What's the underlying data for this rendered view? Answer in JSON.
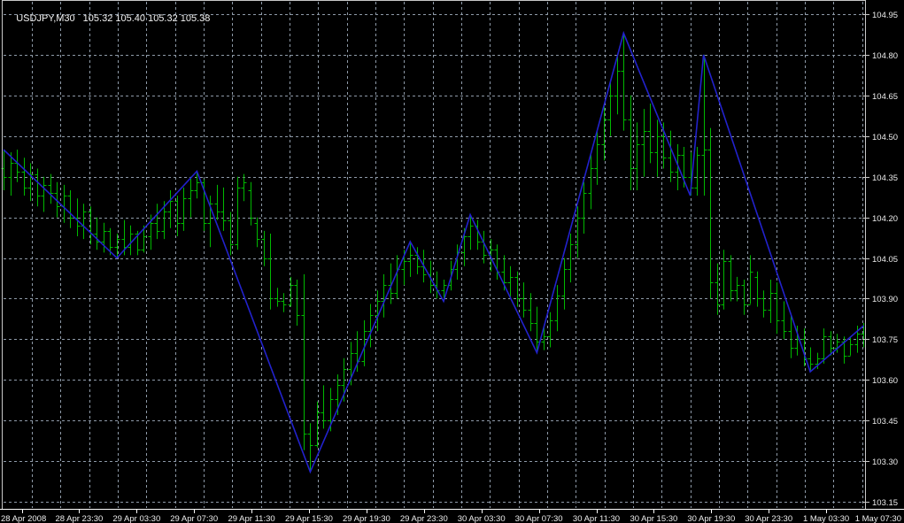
{
  "header": {
    "symbol_period": "USDJPY,M30",
    "ohlc_quote": "105.32 105.40 105.32 105.38"
  },
  "colors": {
    "background": "#000000",
    "grid": "#8e9aa8",
    "bar": "#00b800",
    "zigzag": "#2222cc",
    "frame": "#c8c8c8",
    "axis_text": "#ececec"
  },
  "price_axis": {
    "labels": [
      "104.95",
      "104.80",
      "104.65",
      "104.50",
      "104.35",
      "104.20",
      "104.05",
      "103.90",
      "103.75",
      "103.60",
      "103.45",
      "103.30",
      "103.15"
    ]
  },
  "time_axis": {
    "labels": [
      "28 Apr 2008",
      "28 Apr 23:30",
      "29 Apr 03:30",
      "29 Apr 07:30",
      "29 Apr 11:30",
      "29 Apr 15:30",
      "29 Apr 19:30",
      "29 Apr 23:30",
      "30 Apr 03:30",
      "30 Apr 07:30",
      "30 Apr 11:30",
      "30 Apr 15:30",
      "30 Apr 19:30",
      "30 Apr 23:30",
      "1 May 03:30",
      "1 May 07:30"
    ]
  },
  "chart_data": {
    "type": "ohlc-bar",
    "symbol": "USDJPY",
    "period": "M30",
    "title": "USDJPY,M30 105.32 105.40 105.32 105.38",
    "ylim": [
      103.15,
      104.95
    ],
    "grid": true,
    "indicator": "ZigZag",
    "bars": [
      [
        104.38,
        104.45,
        104.3,
        104.35
      ],
      [
        104.35,
        104.44,
        104.28,
        104.4
      ],
      [
        104.4,
        104.45,
        104.33,
        104.37
      ],
      [
        104.37,
        104.42,
        104.28,
        104.31
      ],
      [
        104.31,
        104.4,
        104.26,
        104.36
      ],
      [
        104.36,
        104.38,
        104.24,
        104.28
      ],
      [
        104.28,
        104.35,
        104.22,
        104.32
      ],
      [
        104.32,
        104.36,
        104.25,
        104.29
      ],
      [
        104.29,
        104.33,
        104.2,
        104.24
      ],
      [
        104.24,
        104.32,
        104.18,
        104.28
      ],
      [
        104.28,
        104.3,
        104.16,
        104.2
      ],
      [
        104.2,
        104.27,
        104.13,
        104.17
      ],
      [
        104.17,
        104.25,
        104.12,
        104.22
      ],
      [
        104.22,
        104.24,
        104.1,
        104.14
      ],
      [
        104.14,
        104.2,
        104.08,
        104.11
      ],
      [
        104.11,
        104.18,
        104.07,
        104.15
      ],
      [
        104.15,
        104.16,
        104.06,
        104.09
      ],
      [
        104.09,
        104.14,
        104.05,
        104.12
      ],
      [
        104.12,
        104.19,
        104.06,
        104.09
      ],
      [
        104.09,
        104.17,
        104.06,
        104.14
      ],
      [
        104.14,
        104.15,
        104.06,
        104.08
      ],
      [
        104.08,
        104.17,
        104.07,
        104.13
      ],
      [
        104.13,
        104.21,
        104.08,
        104.18
      ],
      [
        104.18,
        104.25,
        104.12,
        104.15
      ],
      [
        104.15,
        104.26,
        104.12,
        104.22
      ],
      [
        104.22,
        104.3,
        104.16,
        104.26
      ],
      [
        104.26,
        104.28,
        104.13,
        104.18
      ],
      [
        104.18,
        104.31,
        104.15,
        104.27
      ],
      [
        104.27,
        104.35,
        104.2,
        104.3
      ],
      [
        104.3,
        104.37,
        104.27,
        104.33
      ],
      [
        104.33,
        104.34,
        104.15,
        104.18
      ],
      [
        104.18,
        104.28,
        104.09,
        104.25
      ],
      [
        104.25,
        104.32,
        104.19,
        104.22
      ],
      [
        104.22,
        104.31,
        104.15,
        104.19
      ],
      [
        104.19,
        104.22,
        104.06,
        104.1
      ],
      [
        104.1,
        104.35,
        104.08,
        104.31
      ],
      [
        104.31,
        104.36,
        104.26,
        104.33
      ],
      [
        104.3,
        104.33,
        104.17,
        104.2
      ],
      [
        104.18,
        104.2,
        104.09,
        104.12
      ],
      [
        104.12,
        104.15,
        104.02,
        104.05
      ],
      [
        104.05,
        104.14,
        103.86,
        103.9
      ],
      [
        103.9,
        103.94,
        103.87,
        103.89
      ],
      [
        103.89,
        103.92,
        103.85,
        103.88
      ],
      [
        103.88,
        103.98,
        103.87,
        103.95
      ],
      [
        103.95,
        103.97,
        103.8,
        103.84
      ],
      [
        103.84,
        103.99,
        103.34,
        103.4
      ],
      [
        103.4,
        103.44,
        103.26,
        103.36
      ],
      [
        103.36,
        103.52,
        103.35,
        103.48
      ],
      [
        103.48,
        103.58,
        103.42,
        103.45
      ],
      [
        103.45,
        103.57,
        103.41,
        103.53
      ],
      [
        103.53,
        103.62,
        103.47,
        103.58
      ],
      [
        103.58,
        103.68,
        103.52,
        103.64
      ],
      [
        103.64,
        103.74,
        103.58,
        103.7
      ],
      [
        103.7,
        103.78,
        103.63,
        103.67
      ],
      [
        103.67,
        103.82,
        103.65,
        103.78
      ],
      [
        103.78,
        103.88,
        103.72,
        103.84
      ],
      [
        103.84,
        103.93,
        103.78,
        103.89
      ],
      [
        103.89,
        103.99,
        103.83,
        103.95
      ],
      [
        103.95,
        104.03,
        103.88,
        103.92
      ],
      [
        103.92,
        104.06,
        103.9,
        104.01
      ],
      [
        104.01,
        104.08,
        103.95,
        104.04
      ],
      [
        104.04,
        104.11,
        103.98,
        104.06
      ],
      [
        104.06,
        104.09,
        103.99,
        104.02
      ],
      [
        104.02,
        104.08,
        103.96,
        103.99
      ],
      [
        103.99,
        104.04,
        103.92,
        103.95
      ],
      [
        103.95,
        104.0,
        103.9,
        103.93
      ],
      [
        103.93,
        103.97,
        103.89,
        103.95
      ],
      [
        103.95,
        104.04,
        103.93,
        104.01
      ],
      [
        104.01,
        104.1,
        103.97,
        104.07
      ],
      [
        104.07,
        104.16,
        104.02,
        104.13
      ],
      [
        104.13,
        104.21,
        104.08,
        104.17
      ],
      [
        104.17,
        104.19,
        104.08,
        104.11
      ],
      [
        104.11,
        104.15,
        104.03,
        104.06
      ],
      [
        104.06,
        104.12,
        104.0,
        104.08
      ],
      [
        104.08,
        104.1,
        103.97,
        104.0
      ],
      [
        104.0,
        104.06,
        103.93,
        103.96
      ],
      [
        103.96,
        104.02,
        103.9,
        103.98
      ],
      [
        103.98,
        104.0,
        103.87,
        103.9
      ],
      [
        103.9,
        103.96,
        103.83,
        103.86
      ],
      [
        103.86,
        103.92,
        103.78,
        103.81
      ],
      [
        103.81,
        103.87,
        103.7,
        103.74
      ],
      [
        103.74,
        103.8,
        103.71,
        103.76
      ],
      [
        103.76,
        103.85,
        103.72,
        103.82
      ],
      [
        103.82,
        103.95,
        103.78,
        103.91
      ],
      [
        103.91,
        104.05,
        103.86,
        104.01
      ],
      [
        104.01,
        104.14,
        103.96,
        104.1
      ],
      [
        104.1,
        104.24,
        104.05,
        104.2
      ],
      [
        104.2,
        104.33,
        104.14,
        104.29
      ],
      [
        104.29,
        104.43,
        104.23,
        104.38
      ],
      [
        104.38,
        104.52,
        104.32,
        104.47
      ],
      [
        104.47,
        104.61,
        104.41,
        104.56
      ],
      [
        104.56,
        104.7,
        104.5,
        104.65
      ],
      [
        104.65,
        104.8,
        104.58,
        104.74
      ],
      [
        104.74,
        104.88,
        104.52,
        104.56
      ],
      [
        104.56,
        104.65,
        104.3,
        104.38
      ],
      [
        104.38,
        104.55,
        104.3,
        104.47
      ],
      [
        104.47,
        104.6,
        104.35,
        104.52
      ],
      [
        104.52,
        104.62,
        104.4,
        104.44
      ],
      [
        104.44,
        104.56,
        104.35,
        104.5
      ],
      [
        104.5,
        104.55,
        104.38,
        104.42
      ],
      [
        104.42,
        104.52,
        104.33,
        104.37
      ],
      [
        104.37,
        104.47,
        104.3,
        104.43
      ],
      [
        104.43,
        104.46,
        104.31,
        104.35
      ],
      [
        104.35,
        104.44,
        104.28,
        104.31
      ],
      [
        104.31,
        104.46,
        104.28,
        104.43
      ],
      [
        104.43,
        104.8,
        104.28,
        104.45
      ],
      [
        104.45,
        104.53,
        103.9,
        103.96
      ],
      [
        103.96,
        104.03,
        103.84,
        103.88
      ],
      [
        103.88,
        104.08,
        103.86,
        104.04
      ],
      [
        104.04,
        104.06,
        103.89,
        103.93
      ],
      [
        103.93,
        103.98,
        103.89,
        103.95
      ],
      [
        103.95,
        103.97,
        103.84,
        103.88
      ],
      [
        103.88,
        104.06,
        103.88,
        104.0
      ],
      [
        103.98,
        104.0,
        103.87,
        103.9
      ],
      [
        103.9,
        103.93,
        103.83,
        103.86
      ],
      [
        103.86,
        103.97,
        103.81,
        103.92
      ],
      [
        103.92,
        103.96,
        103.77,
        103.82
      ],
      [
        103.82,
        103.89,
        103.75,
        103.78
      ],
      [
        103.78,
        103.84,
        103.68,
        103.72
      ],
      [
        103.72,
        103.8,
        103.69,
        103.75
      ],
      [
        103.75,
        103.79,
        103.65,
        103.68
      ],
      [
        103.68,
        103.72,
        103.63,
        103.66
      ],
      [
        103.66,
        103.7,
        103.64,
        103.68
      ],
      [
        103.68,
        103.79,
        103.66,
        103.76
      ],
      [
        103.76,
        103.78,
        103.69,
        103.72
      ],
      [
        103.72,
        103.77,
        103.7,
        103.74
      ],
      [
        103.74,
        103.76,
        103.66,
        103.69
      ],
      [
        103.69,
        103.76,
        103.69,
        103.73
      ],
      [
        103.73,
        103.8,
        103.7,
        103.77
      ],
      [
        103.77,
        103.81,
        103.72,
        103.75
      ]
    ],
    "zigzag": [
      [
        0,
        104.45
      ],
      [
        17,
        104.05
      ],
      [
        29,
        104.37
      ],
      [
        46,
        103.26
      ],
      [
        61,
        104.11
      ],
      [
        66,
        103.89
      ],
      [
        70,
        104.21
      ],
      [
        80,
        103.7
      ],
      [
        93,
        104.88
      ],
      [
        103,
        104.28
      ],
      [
        105,
        104.8
      ],
      [
        121,
        103.63
      ],
      [
        129,
        103.8
      ]
    ]
  }
}
